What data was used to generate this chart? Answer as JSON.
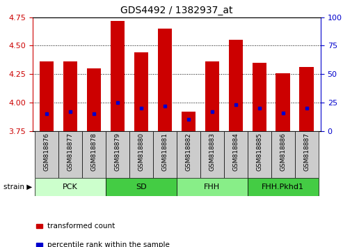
{
  "title": "GDS4492 / 1382937_at",
  "samples": [
    "GSM818876",
    "GSM818877",
    "GSM818878",
    "GSM818879",
    "GSM818880",
    "GSM818881",
    "GSM818882",
    "GSM818883",
    "GSM818884",
    "GSM818885",
    "GSM818886",
    "GSM818887"
  ],
  "transformed_counts": [
    4.36,
    4.36,
    4.3,
    4.72,
    4.44,
    4.65,
    3.92,
    4.36,
    4.55,
    4.35,
    4.26,
    4.31
  ],
  "percentile_ranks": [
    15,
    17,
    15,
    25,
    20,
    22,
    10,
    17,
    23,
    20,
    16,
    20
  ],
  "y_min": 3.75,
  "y_max": 4.75,
  "y_ticks": [
    3.75,
    4.0,
    4.25,
    4.5,
    4.75
  ],
  "right_y_ticks": [
    0,
    25,
    50,
    75,
    100
  ],
  "bar_color": "#CC0000",
  "dot_color": "#0000CC",
  "bar_width": 0.6,
  "groups": [
    {
      "label": "PCK",
      "start": 0,
      "end": 3,
      "color": "#ccffcc"
    },
    {
      "label": "SD",
      "start": 3,
      "end": 6,
      "color": "#44cc44"
    },
    {
      "label": "FHH",
      "start": 6,
      "end": 9,
      "color": "#88ee88"
    },
    {
      "label": "FHH.Pkhd1",
      "start": 9,
      "end": 12,
      "color": "#44cc44"
    }
  ],
  "legend_items": [
    {
      "label": "transformed count",
      "color": "#CC0000"
    },
    {
      "label": "percentile rank within the sample",
      "color": "#0000CC"
    }
  ],
  "strain_label": "strain",
  "left_tick_color": "#CC0000",
  "right_tick_color": "#0000CC",
  "tick_bg_color": "#cccccc"
}
